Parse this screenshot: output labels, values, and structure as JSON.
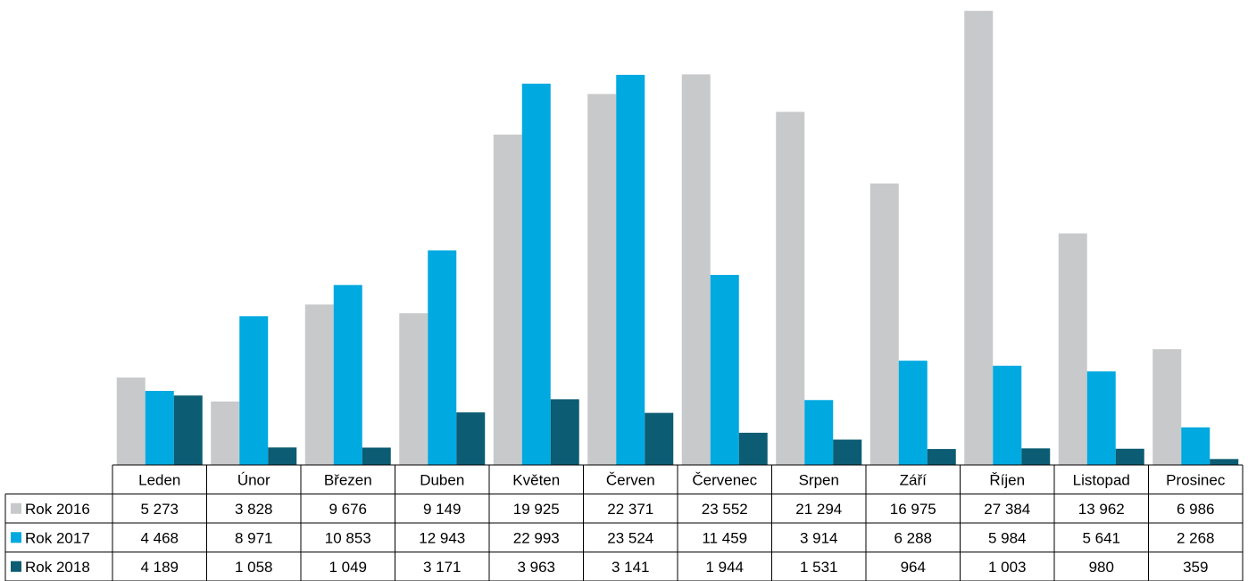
{
  "chart_data": {
    "type": "bar",
    "categories": [
      "Leden",
      "Únor",
      "Březen",
      "Duben",
      "Květen",
      "Červen",
      "Červenec",
      "Srpen",
      "Září",
      "Říjen",
      "Listopad",
      "Prosinec"
    ],
    "series": [
      {
        "name": "Rok 2016",
        "color": "#c8c9cb",
        "values": [
          5273,
          3828,
          9676,
          9149,
          19925,
          22371,
          23552,
          21294,
          16975,
          27384,
          13962,
          6986
        ],
        "labels": [
          "5 273",
          "3 828",
          "9 676",
          "9 149",
          "19 925",
          "22 371",
          "23 552",
          "21 294",
          "16 975",
          "27 384",
          "13 962",
          "6 986"
        ]
      },
      {
        "name": "Rok 2017",
        "color": "#00a9e0",
        "values": [
          4468,
          8971,
          10853,
          12943,
          22993,
          23524,
          11459,
          3914,
          6288,
          5984,
          5641,
          2268
        ],
        "labels": [
          "4 468",
          "8 971",
          "10 853",
          "12 943",
          "22 993",
          "23 524",
          "11 459",
          "3 914",
          "6 288",
          "5 984",
          "5 641",
          "2 268"
        ]
      },
      {
        "name": "Rok 2018",
        "color": "#0c5c73",
        "values": [
          4189,
          1058,
          1049,
          3171,
          3963,
          3141,
          1944,
          1531,
          964,
          1003,
          980,
          359
        ],
        "labels": [
          "4 189",
          "1 058",
          "1 049",
          "3 171",
          "3 963",
          "3 141",
          "1 944",
          "1 531",
          "964",
          "1 003",
          "980",
          "359"
        ]
      }
    ],
    "ylim": [
      0,
      27500
    ],
    "grid": false,
    "legend": "data-table"
  }
}
